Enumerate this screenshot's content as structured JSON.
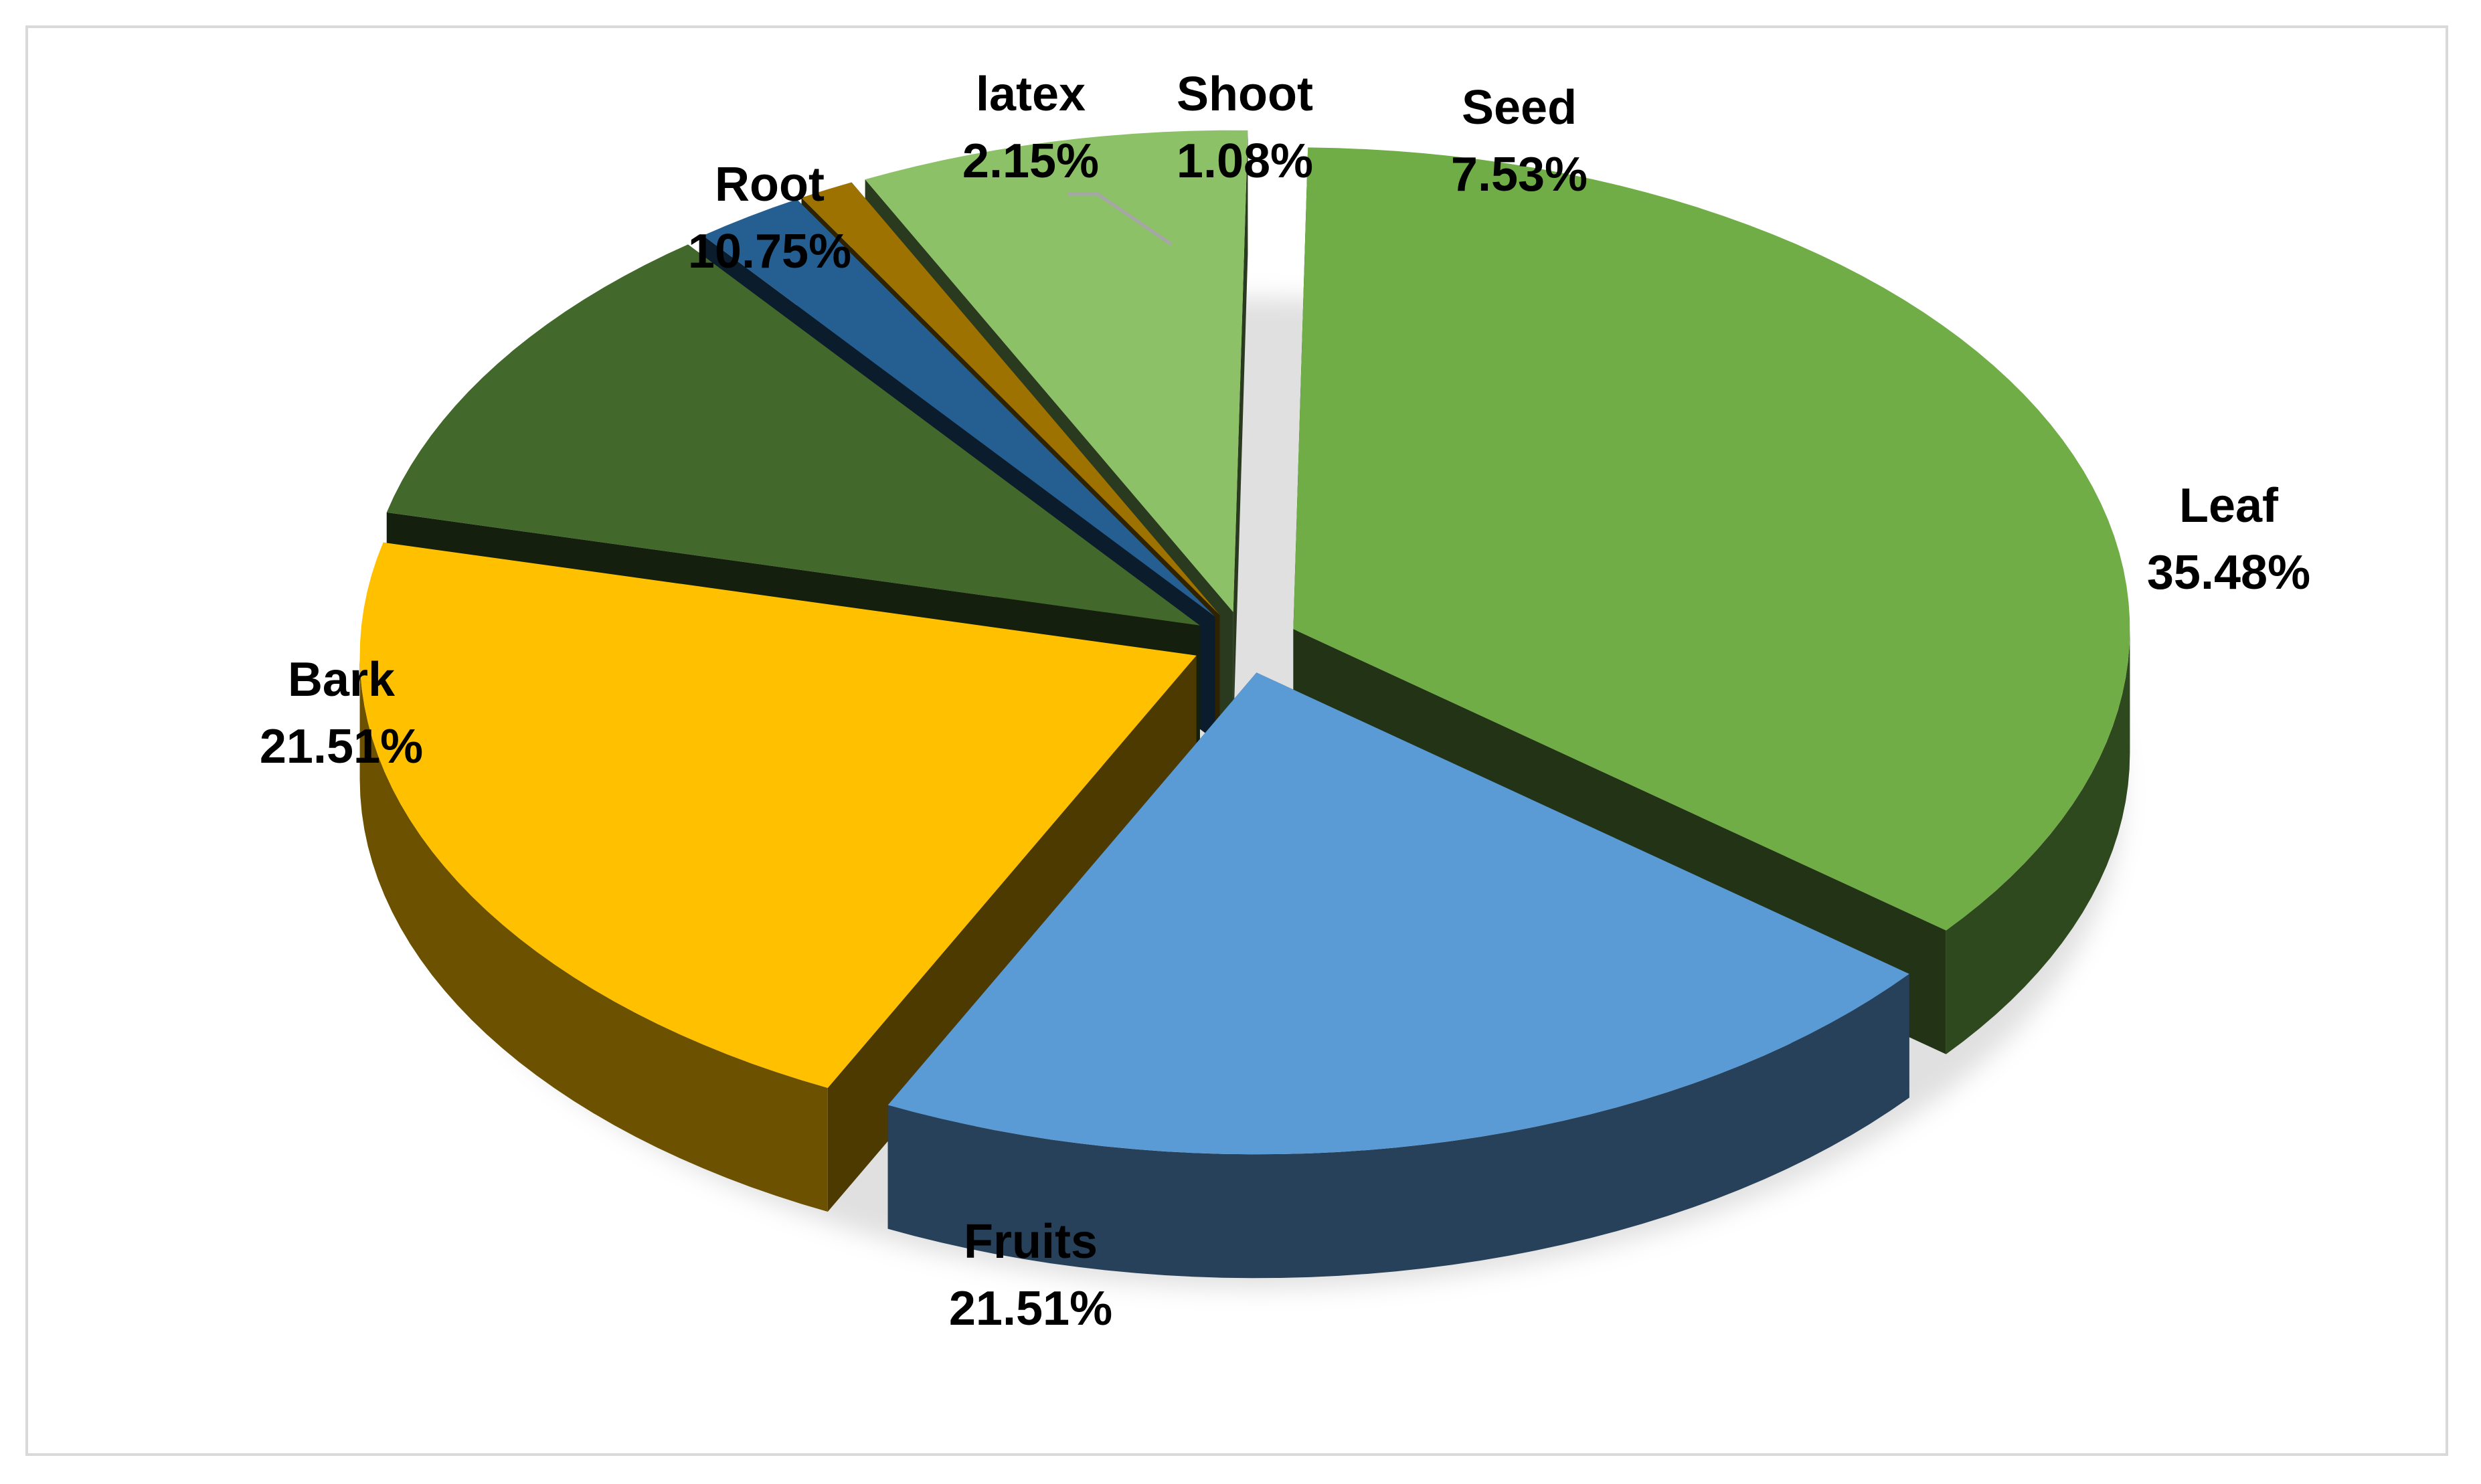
{
  "chart_data": {
    "type": "pie",
    "title": "",
    "style": "3d-exploded",
    "legend": "none",
    "slices": [
      {
        "name": "Leaf",
        "value": 35.48,
        "label": "35.48%",
        "color": "#70ad47"
      },
      {
        "name": "Fruits",
        "value": 21.51,
        "label": "21.51%",
        "color": "#5b9bd5"
      },
      {
        "name": "Bark",
        "value": 21.51,
        "label": "21.51%",
        "color": "#ffc000"
      },
      {
        "name": "Root",
        "value": 10.75,
        "label": "10.75%",
        "color": "#43682b"
      },
      {
        "name": "latex",
        "value": 2.15,
        "label": "2.15%",
        "color": "#255e91"
      },
      {
        "name": "Shoot",
        "value": 1.08,
        "label": "1.08%",
        "color": "#9e7200"
      },
      {
        "name": "Seed",
        "value": 7.53,
        "label": "7.53%",
        "color": "#8cc168"
      }
    ]
  }
}
